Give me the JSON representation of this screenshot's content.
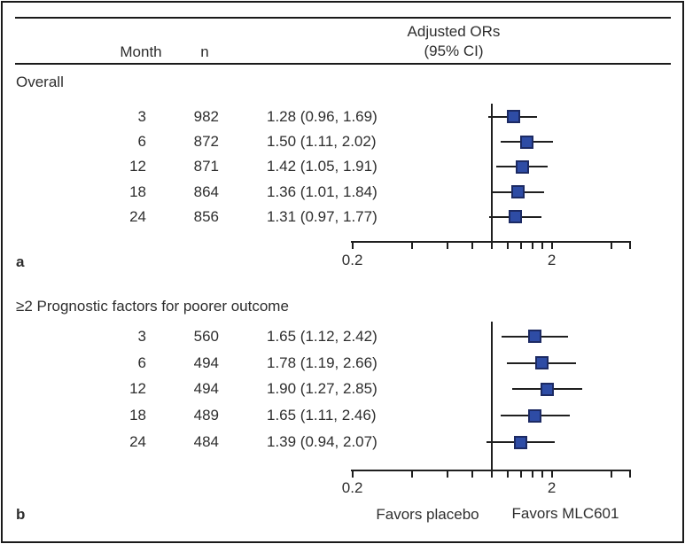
{
  "header": {
    "month": "Month",
    "n": "n",
    "or_line1": "Adjusted ORs",
    "or_line2": "(95% CI)"
  },
  "panels": [
    {
      "letter": "a",
      "title": "Overall",
      "rows": [
        {
          "month": "3",
          "n": "982",
          "or_text": "1.28 (0.96, 1.69)",
          "or": 1.28,
          "lo": 0.96,
          "hi": 1.69
        },
        {
          "month": "6",
          "n": "872",
          "or_text": "1.50 (1.11, 2.02)",
          "or": 1.5,
          "lo": 1.11,
          "hi": 2.02
        },
        {
          "month": "12",
          "n": "871",
          "or_text": "1.42 (1.05, 1.91)",
          "or": 1.42,
          "lo": 1.05,
          "hi": 1.91
        },
        {
          "month": "18",
          "n": "864",
          "or_text": "1.36 (1.01, 1.84)",
          "or": 1.36,
          "lo": 1.01,
          "hi": 1.84
        },
        {
          "month": "24",
          "n": "856",
          "or_text": "1.31 (0.97, 1.77)",
          "or": 1.31,
          "lo": 0.97,
          "hi": 1.77
        }
      ],
      "axis": {
        "tick_values": [
          0.2,
          0.4,
          0.6,
          0.8,
          1,
          1.2,
          1.4,
          1.6,
          1.8,
          2,
          4
        ],
        "labeled_ticks": [
          {
            "text": "0.2",
            "value": 0.2
          },
          {
            "text": "2",
            "value": 2
          }
        ],
        "reference_value": 1
      }
    },
    {
      "letter": "b",
      "title": "≥2 Prognostic factors for poorer outcome",
      "rows": [
        {
          "month": "3",
          "n": "560",
          "or_text": "1.65 (1.12, 2.42)",
          "or": 1.65,
          "lo": 1.12,
          "hi": 2.42
        },
        {
          "month": "6",
          "n": "494",
          "or_text": "1.78 (1.19, 2.66)",
          "or": 1.78,
          "lo": 1.19,
          "hi": 2.66
        },
        {
          "month": "12",
          "n": "494",
          "or_text": "1.90 (1.27, 2.85)",
          "or": 1.9,
          "lo": 1.27,
          "hi": 2.85
        },
        {
          "month": "18",
          "n": "489",
          "or_text": "1.65 (1.11, 2.46)",
          "or": 1.65,
          "lo": 1.11,
          "hi": 2.46
        },
        {
          "month": "24",
          "n": "484",
          "or_text": "1.39 (0.94, 2.07)",
          "or": 1.39,
          "lo": 0.94,
          "hi": 2.07
        }
      ],
      "axis": {
        "tick_values": [
          0.2,
          0.4,
          0.6,
          0.8,
          1,
          1.2,
          1.4,
          1.6,
          1.8,
          2,
          4
        ],
        "labeled_ticks": [
          {
            "text": "0.2",
            "value": 0.2
          },
          {
            "text": "2",
            "value": 2
          }
        ],
        "reference_value": 1
      }
    }
  ],
  "footer": {
    "favors_left": "Favors placebo",
    "favors_right": "Favors MLC601"
  },
  "colors": {
    "marker_fill": "#2e4ca5",
    "marker_border": "#1c2a63",
    "line": "#1f1f1f",
    "text": "#2e2e2e"
  },
  "chart_data": [
    {
      "type": "scatter",
      "subtype": "forest-plot",
      "title": "Overall",
      "panel_label": "a",
      "xlabel": "Adjusted ORs (95% CI)",
      "xscale": "log",
      "xlim": [
        0.2,
        4.9
      ],
      "x_tick_labels": [
        "0.2",
        "2"
      ],
      "x_ticks": [
        0.2,
        0.4,
        0.6,
        0.8,
        1,
        1.2,
        1.4,
        1.6,
        1.8,
        2,
        4
      ],
      "reference_line_x": 1.0,
      "categories": [
        "3",
        "6",
        "12",
        "18",
        "24"
      ],
      "category_label": "Month",
      "n": [
        982,
        872,
        871,
        864,
        856
      ],
      "odds_ratio": [
        1.28,
        1.5,
        1.42,
        1.36,
        1.31
      ],
      "ci_low": [
        0.96,
        1.11,
        1.05,
        1.01,
        0.97
      ],
      "ci_high": [
        1.69,
        2.02,
        1.91,
        1.84,
        1.77
      ],
      "grid": false,
      "legend": false
    },
    {
      "type": "scatter",
      "subtype": "forest-plot",
      "title": "≥2 Prognostic factors for poorer outcome",
      "panel_label": "b",
      "xlabel": "Adjusted ORs (95% CI)",
      "xscale": "log",
      "xlim": [
        0.2,
        4.9
      ],
      "x_tick_labels": [
        "0.2",
        "2"
      ],
      "x_ticks": [
        0.2,
        0.4,
        0.6,
        0.8,
        1,
        1.2,
        1.4,
        1.6,
        1.8,
        2,
        4
      ],
      "reference_line_x": 1.0,
      "categories": [
        "3",
        "6",
        "12",
        "18",
        "24"
      ],
      "category_label": "Month",
      "n": [
        560,
        494,
        494,
        489,
        484
      ],
      "odds_ratio": [
        1.65,
        1.78,
        1.9,
        1.65,
        1.39
      ],
      "ci_low": [
        1.12,
        1.19,
        1.27,
        1.11,
        0.94
      ],
      "ci_high": [
        2.42,
        2.66,
        2.85,
        2.46,
        2.07
      ],
      "annotations": [
        "Favors placebo",
        "Favors MLC601"
      ],
      "grid": false,
      "legend": false
    }
  ]
}
